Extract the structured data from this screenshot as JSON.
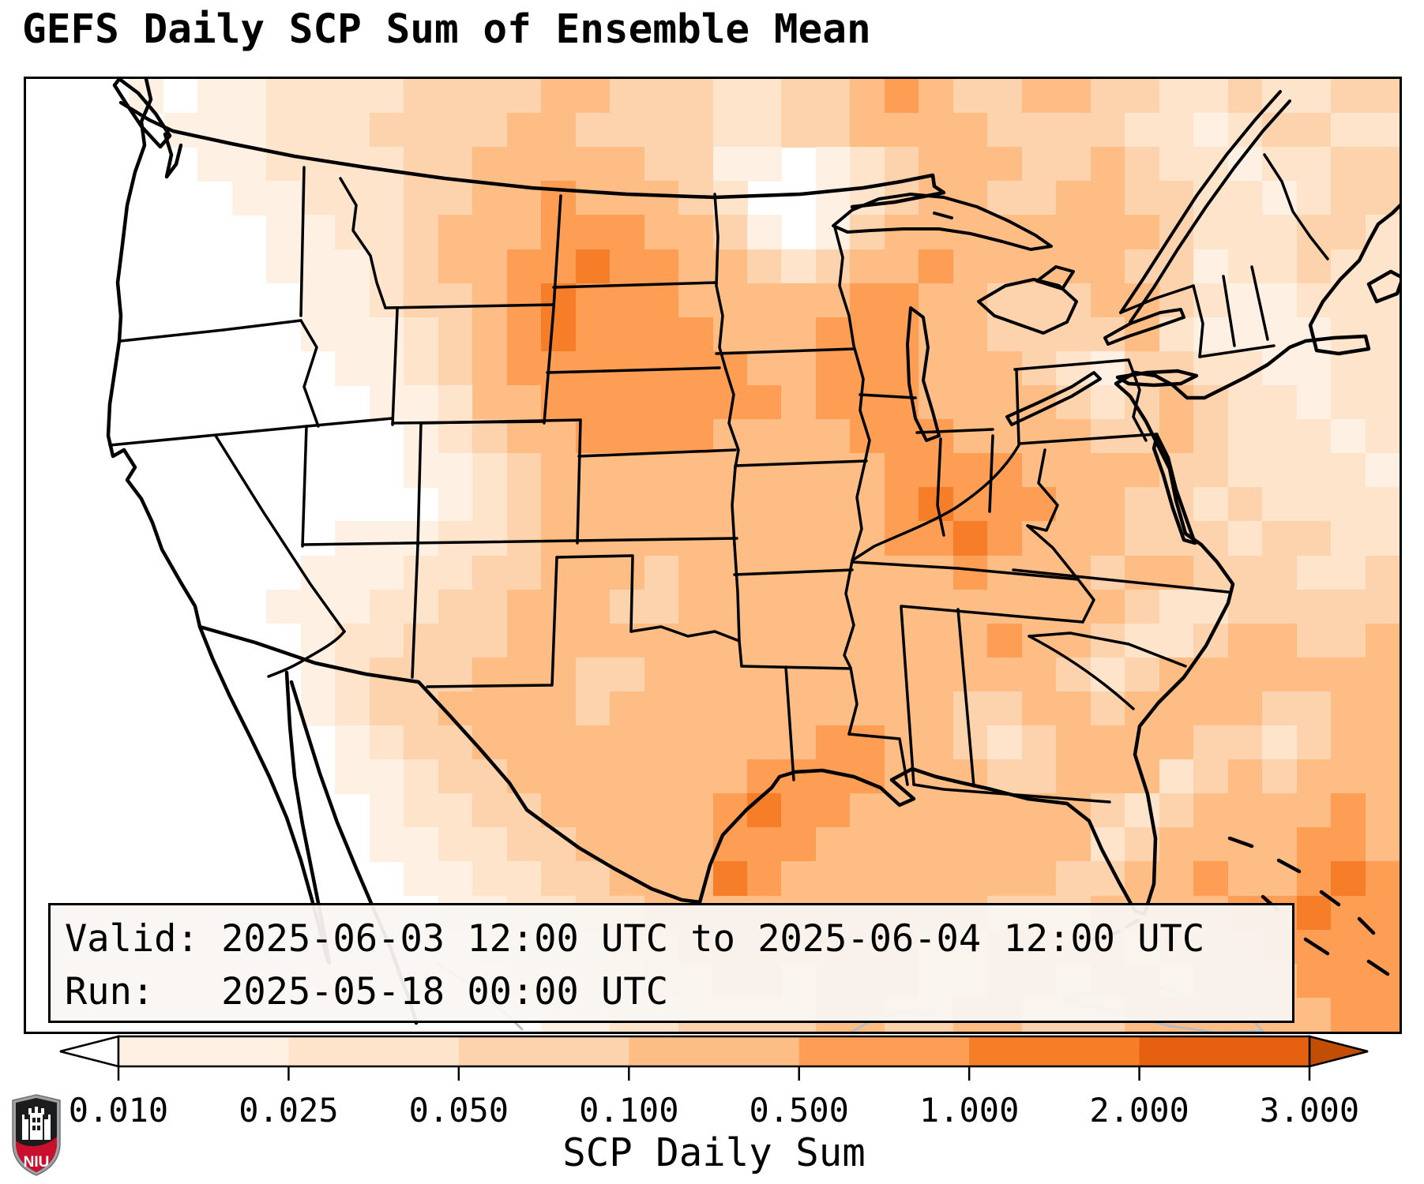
{
  "title": "GEFS Daily SCP Sum of Ensemble Mean",
  "annotation_box": {
    "line1": "Valid: 2025-06-03 12:00 UTC to 2025-06-04 12:00 UTC",
    "line2": "Run:   2025-05-18 00:00 UTC"
  },
  "colorbar": {
    "axis_label": "SCP Daily Sum",
    "tick_labels": [
      "0.010",
      "0.025",
      "0.050",
      "0.100",
      "0.500",
      "1.000",
      "2.000",
      "3.000"
    ],
    "segment_colors": [
      "#fef1e3",
      "#fde4cb",
      "#fdd3ae",
      "#fdbd84",
      "#fd9e54",
      "#f67e29",
      "#e5600f"
    ],
    "under_color": "#ffffff",
    "over_color": "#c14e04",
    "extend": "both",
    "orientation": "horizontal"
  },
  "logo": {
    "label": "NIU",
    "shield_dark": "#1c1c1c",
    "shield_red": "#c8102e",
    "shield_trim": "#9ea2a4"
  },
  "chart_data": {
    "type": "heatmap",
    "title": "GEFS Daily SCP Sum of Ensemble Mean",
    "variable": "SCP Daily Sum",
    "valid_period": "2025-06-03 12:00 UTC to 2025-06-04 12:00 UTC",
    "run_time": "2025-05-18 00:00 UTC",
    "region": "Continental United States and surrounding waters",
    "colormap": "Oranges (discrete, extend both)",
    "bin_boundaries": [
      0.01,
      0.025,
      0.05,
      0.1,
      0.5,
      1.0,
      2.0,
      3.0
    ],
    "legend_position": "bottom",
    "grid_cols": 40,
    "grid_rows": 28,
    "palette": [
      "#ffffff",
      "#fef1e3",
      "#fde4cb",
      "#fdd3ae",
      "#fdbd84",
      "#fd9e54",
      "#f67e29",
      "#e5600f",
      "#c14e04"
    ],
    "notes": "Digits 0-8 index palette; 0 = below 0.01 (white), 4 = 0.1-0.5 (dominant orange over central/eastern US), 5 = 0.5-1 (northern plains, Iowa, Gulf coast), 6 = 1-2 (western South Dakota, Texas coast blob, Kentucky)",
    "grid": [
      "0001011222233334433322334543344332232233",
      "0000111222333344333322334444333322123322",
      "0000011222233444443311012344433432212233",
      "0000001122233445444320012344334433221233",
      "0000000112234445554431013444444443222332",
      "0000000111234455655443234454444433122322",
      "0000000011233456555444445544333443211222",
      "0000000011123456555544455544333342111122",
      "0000000001123455555554455544432133221122",
      "0000000000112445555555455544443234322122",
      "0000000000012344555544445554444334322212",
      "0000000000011234444444444555544443322221",
      "0000000000001234444444444565554433232222",
      "0000000001112234444444444556544433323322",
      "0000000011122334443444444445444344333223",
      "0000000111223344433444444444444432233333",
      "0000000012233344444444444444544322344334",
      "0000000012333444334444444444443234444444",
      "0000000012334444344444444443344344443344",
      "0000000001233444444444455443234444332344",
      "0000000001123344444445555444334442343444",
      "0000000000122334444456554444444323444454",
      "0000000000112233444455544444444234444554",
      "0000000000011223344465444444443344544565",
      "0000000000001122334444444444333444455655",
      "0000000000000112233444444433444434445555",
      "0000000000000011223344344433443443444555",
      "0000000000000001122333344334433344444455"
    ]
  }
}
